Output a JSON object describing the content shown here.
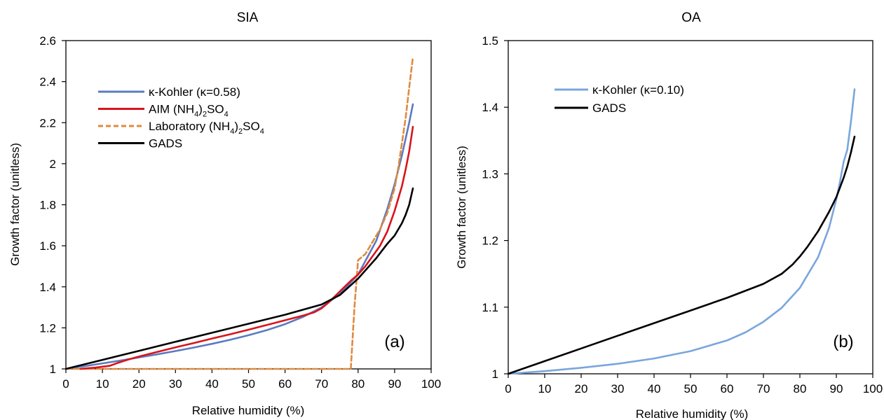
{
  "colors": {
    "blue": "#5b7bc0",
    "light_blue": "#7aa6dc",
    "red": "#d9141b",
    "orange": "#e08a3e",
    "black": "#000000"
  },
  "chart_data": [
    {
      "type": "line",
      "title": "SIA",
      "xlabel": "Relative humidity (%)",
      "ylabel": "Growth factor (unitless)",
      "xlim": [
        0,
        100
      ],
      "ylim": [
        1,
        2.6
      ],
      "xticks": [
        "0",
        "10",
        "20",
        "30",
        "40",
        "50",
        "60",
        "70",
        "80",
        "90",
        "100"
      ],
      "yticks": [
        "1",
        "1.2",
        "1.4",
        "1.6",
        "1.8",
        "2",
        "2.2",
        "2.4",
        "2.6"
      ],
      "panel_label": "(a)",
      "grid": false,
      "legend_position": "top-left",
      "legend": [
        {
          "name": "κ-Kohler (κ=0.58)",
          "color": "#5b7bc0",
          "dash": false
        },
        {
          "name": "AIM (NH4)2SO4",
          "label_main": "AIM (NH",
          "sub1": "4",
          "mid": ")",
          "sub2": "2",
          "tail": "SO",
          "sub3": "4",
          "color": "#d9141b",
          "dash": false
        },
        {
          "name": "Laboratory (NH4)2SO4",
          "label_main": "Laboratory (NH",
          "sub1": "4",
          "mid": ")",
          "sub2": "2",
          "tail": "SO",
          "sub3": "4",
          "color": "#e08a3e",
          "dash": true
        },
        {
          "name": "GADS",
          "color": "#000000",
          "dash": false
        }
      ],
      "series": [
        {
          "name": "κ-Kohler (κ=0.58)",
          "color": "#5b7bc0",
          "dash": false,
          "x": [
            0,
            5,
            10,
            15,
            20,
            25,
            30,
            35,
            40,
            45,
            50,
            55,
            60,
            65,
            70,
            75,
            80,
            85,
            88,
            90,
            92,
            93,
            94,
            95
          ],
          "y": [
            1.0,
            1.013,
            1.027,
            1.041,
            1.056,
            1.071,
            1.087,
            1.104,
            1.122,
            1.142,
            1.164,
            1.189,
            1.218,
            1.254,
            1.3,
            1.365,
            1.46,
            1.625,
            1.78,
            1.9,
            2.04,
            2.12,
            2.2,
            2.29
          ]
        },
        {
          "name": "Laboratory (NH4)2SO4",
          "color": "#e08a3e",
          "dash": true,
          "x": [
            0,
            10,
            20,
            30,
            40,
            50,
            60,
            70,
            76,
            77,
            78,
            79,
            80,
            82,
            84,
            86,
            88,
            90,
            91,
            92,
            93,
            94,
            95
          ],
          "y": [
            1.0,
            1.0,
            1.0,
            1.0,
            1.0,
            1.0,
            1.0,
            1.0,
            1.0,
            1.0,
            1.0,
            1.3,
            1.53,
            1.56,
            1.62,
            1.68,
            1.76,
            1.88,
            1.98,
            2.1,
            2.22,
            2.37,
            2.52
          ]
        },
        {
          "name": "AIM (NH4)2SO4",
          "color": "#d9141b",
          "dash": false,
          "x": [
            4,
            8,
            12,
            14,
            17,
            20,
            25,
            30,
            35,
            40,
            45,
            50,
            55,
            60,
            65,
            68,
            70,
            72,
            74,
            76,
            78,
            80,
            82,
            84,
            86,
            88,
            90,
            92,
            93,
            94,
            95
          ],
          "y": [
            1.0,
            1.006,
            1.015,
            1.028,
            1.045,
            1.06,
            1.083,
            1.105,
            1.126,
            1.148,
            1.169,
            1.191,
            1.214,
            1.237,
            1.26,
            1.276,
            1.295,
            1.325,
            1.36,
            1.395,
            1.43,
            1.46,
            1.5,
            1.55,
            1.6,
            1.67,
            1.77,
            1.89,
            1.97,
            2.06,
            2.18
          ]
        },
        {
          "name": "GADS",
          "color": "#000000",
          "dash": false,
          "x": [
            0,
            10,
            20,
            30,
            40,
            50,
            60,
            70,
            75,
            80,
            85,
            88,
            90,
            92,
            93,
            94,
            95
          ],
          "y": [
            1.0,
            1.044,
            1.088,
            1.132,
            1.176,
            1.22,
            1.264,
            1.314,
            1.36,
            1.44,
            1.54,
            1.61,
            1.65,
            1.71,
            1.75,
            1.8,
            1.88
          ]
        }
      ]
    },
    {
      "type": "line",
      "title": "OA",
      "xlabel": "Relative humidity (%)",
      "ylabel": "Growth factor (unitless)",
      "xlim": [
        0,
        100
      ],
      "ylim": [
        1,
        1.5
      ],
      "xticks": [
        "0",
        "10",
        "20",
        "30",
        "40",
        "50",
        "60",
        "70",
        "80",
        "90",
        "100"
      ],
      "yticks": [
        "1",
        "1.1",
        "1.2",
        "1.3",
        "1.4",
        "1.5"
      ],
      "panel_label": "(b)",
      "grid": false,
      "legend_position": "top-left",
      "legend": [
        {
          "name": "κ-Kohler (κ=0.10)",
          "color": "#7aa6dc",
          "dash": false
        },
        {
          "name": "GADS",
          "color": "#000000",
          "dash": false
        }
      ],
      "series": [
        {
          "name": "κ-Kohler (κ=0.10)",
          "color": "#7aa6dc",
          "dash": false,
          "x": [
            0,
            10,
            20,
            30,
            40,
            50,
            60,
            65,
            70,
            75,
            80,
            85,
            88,
            90,
            91,
            92,
            93,
            94,
            95
          ],
          "y": [
            1.0,
            1.004,
            1.009,
            1.015,
            1.023,
            1.034,
            1.05,
            1.062,
            1.078,
            1.099,
            1.129,
            1.175,
            1.219,
            1.262,
            1.288,
            1.318,
            1.336,
            1.378,
            1.427
          ]
        },
        {
          "name": "GADS",
          "color": "#000000",
          "dash": false,
          "x": [
            0,
            10,
            20,
            30,
            40,
            50,
            60,
            70,
            75,
            78,
            80,
            82,
            85,
            88,
            90,
            92,
            93,
            94,
            95
          ],
          "y": [
            1.0,
            1.019,
            1.038,
            1.057,
            1.076,
            1.095,
            1.114,
            1.135,
            1.15,
            1.164,
            1.176,
            1.19,
            1.214,
            1.243,
            1.265,
            1.294,
            1.311,
            1.332,
            1.356
          ]
        }
      ]
    }
  ]
}
